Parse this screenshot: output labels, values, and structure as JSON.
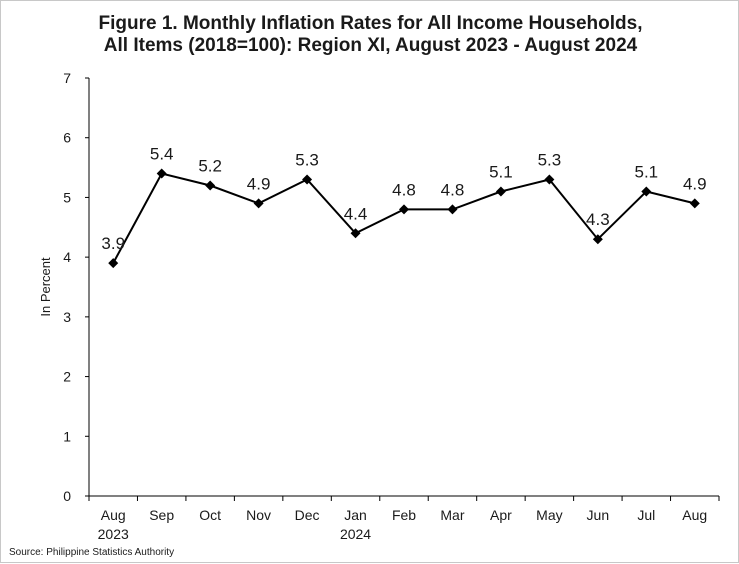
{
  "title_line1": "Figure 1. Monthly Inflation Rates for All Income Households,",
  "title_line2": "All Items (2018=100): Region XI, August 2023 - August 2024",
  "source": "Source: Philippine Statistics Authority",
  "colors": {
    "line": "#000000",
    "text": "#1a1a1a",
    "axis": "#000000"
  },
  "chart_data": {
    "type": "line",
    "ylabel": "In Percent",
    "xlabel": "",
    "ylim": [
      0,
      7
    ],
    "yticks": [
      "0",
      "1",
      "2",
      "3",
      "4",
      "5",
      "6",
      "7"
    ],
    "grid": false,
    "legend": "none",
    "categories": [
      [
        "Aug",
        "2023"
      ],
      [
        "Sep"
      ],
      [
        "Oct"
      ],
      [
        "Nov"
      ],
      [
        "Dec"
      ],
      [
        "Jan",
        "2024"
      ],
      [
        "Feb"
      ],
      [
        "Mar"
      ],
      [
        "Apr"
      ],
      [
        "May"
      ],
      [
        "Jun"
      ],
      [
        "Jul"
      ],
      [
        "Aug"
      ]
    ],
    "values": [
      3.9,
      5.4,
      5.2,
      4.9,
      5.3,
      4.4,
      4.8,
      4.8,
      5.1,
      5.3,
      4.3,
      5.1,
      4.9
    ],
    "data_labels": [
      "3.9",
      "5.4",
      "5.2",
      "4.9",
      "5.3",
      "4.4",
      "4.8",
      "4.8",
      "5.1",
      "5.3",
      "4.3",
      "5.1",
      "4.9"
    ],
    "marker": "diamond"
  }
}
